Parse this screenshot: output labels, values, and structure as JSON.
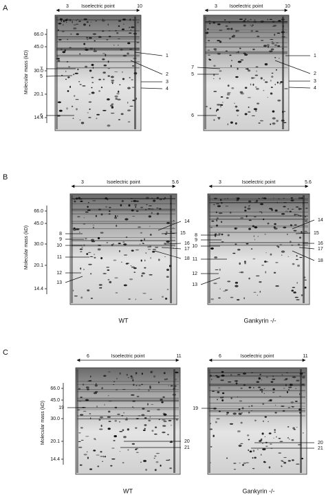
{
  "panels": [
    {
      "label": "A",
      "pi_axis": {
        "label": "Isoelectric point",
        "start": "3",
        "end": "10"
      },
      "mass_axis": {
        "label": "Molecular mass (kD)",
        "ticks": [
          "66.0",
          "45.0",
          "30.0",
          "20.1",
          "14.4"
        ]
      },
      "gels": [
        {
          "spots": [
            "1",
            "2",
            "3",
            "4",
            "7",
            "5",
            "6"
          ]
        },
        {
          "spots": [
            "1",
            "2",
            "3",
            "4",
            "7",
            "5",
            "6"
          ]
        }
      ]
    },
    {
      "label": "B",
      "pi_axis": {
        "label": "Isoelectric point",
        "start": "3",
        "end": "5.6"
      },
      "mass_axis": {
        "label": "Molecular mass (kD)",
        "ticks": [
          "66.0",
          "45.0",
          "30.0",
          "20.1",
          "14.4"
        ]
      },
      "gels": [
        {
          "caption": "WT",
          "spots": [
            "8",
            "9",
            "10",
            "11",
            "12",
            "13",
            "14",
            "15",
            "16",
            "17",
            "18"
          ]
        },
        {
          "caption": "Gankyrin -/-",
          "spots": [
            "8",
            "9",
            "10",
            "11",
            "12",
            "13",
            "14",
            "15",
            "16",
            "17",
            "18"
          ]
        }
      ]
    },
    {
      "label": "C",
      "pi_axis": {
        "label": "Isoelectric point",
        "start": "6",
        "end": "11"
      },
      "mass_axis": {
        "label": "Molecular mass (kD)",
        "ticks": [
          "66.0",
          "45.0",
          "30.0",
          "20.1",
          "14.4"
        ]
      },
      "gels": [
        {
          "caption": "WT",
          "spots": [
            "19",
            "20",
            "21"
          ]
        },
        {
          "caption": "Gankyrin -/-",
          "spots": [
            "19",
            "20",
            "21"
          ]
        }
      ]
    }
  ]
}
